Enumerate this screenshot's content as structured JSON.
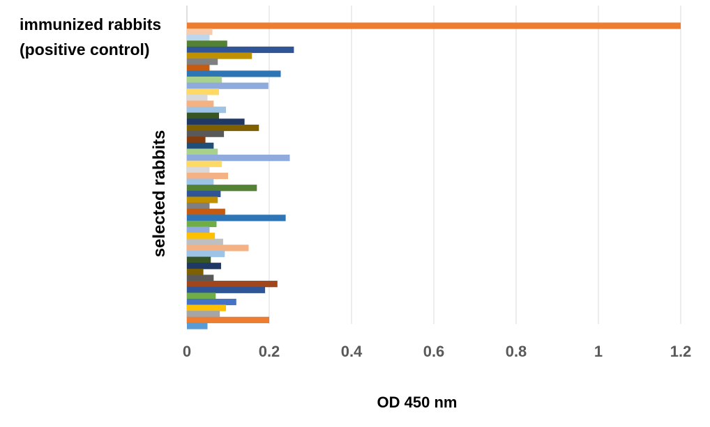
{
  "chart_data": {
    "type": "bar",
    "orientation": "horizontal",
    "xlabel": "OD 450 nm",
    "ylabel": "selected rabbits",
    "control_label_line1": "immunized rabbits",
    "control_label_line2": "(positive control)",
    "xlim": [
      0,
      1.2
    ],
    "xticks": [
      "0",
      "0.2",
      "0.4",
      "0.6",
      "0.8",
      "1",
      "1.2"
    ],
    "grid": "vertical",
    "legend": "none",
    "bars": [
      {
        "value": 1.2,
        "color": "#ED7D31"
      },
      {
        "value": 0.062,
        "color": "#F8CBAD"
      },
      {
        "value": 0.055,
        "color": "#BDD7EE"
      },
      {
        "value": 0.098,
        "color": "#548235"
      },
      {
        "value": 0.26,
        "color": "#2F5597"
      },
      {
        "value": 0.158,
        "color": "#BF9000"
      },
      {
        "value": 0.075,
        "color": "#7F7F7F"
      },
      {
        "value": 0.055,
        "color": "#C55A11"
      },
      {
        "value": 0.228,
        "color": "#2E75B6"
      },
      {
        "value": 0.085,
        "color": "#A9D18E"
      },
      {
        "value": 0.198,
        "color": "#8FAADC"
      },
      {
        "value": 0.078,
        "color": "#FFD966"
      },
      {
        "value": 0.05,
        "color": "#D9D9D9"
      },
      {
        "value": 0.065,
        "color": "#F4B183"
      },
      {
        "value": 0.095,
        "color": "#9DC3E6"
      },
      {
        "value": 0.078,
        "color": "#375623"
      },
      {
        "value": 0.14,
        "color": "#203864"
      },
      {
        "value": 0.175,
        "color": "#7F6000"
      },
      {
        "value": 0.09,
        "color": "#595959"
      },
      {
        "value": 0.045,
        "color": "#843C0C"
      },
      {
        "value": 0.065,
        "color": "#1F4E79"
      },
      {
        "value": 0.075,
        "color": "#A9D18E"
      },
      {
        "value": 0.25,
        "color": "#8FAADC"
      },
      {
        "value": 0.085,
        "color": "#FFD966"
      },
      {
        "value": 0.055,
        "color": "#D9D9D9"
      },
      {
        "value": 0.1,
        "color": "#F4B183"
      },
      {
        "value": 0.065,
        "color": "#9DC3E6"
      },
      {
        "value": 0.17,
        "color": "#548235"
      },
      {
        "value": 0.082,
        "color": "#2F5597"
      },
      {
        "value": 0.075,
        "color": "#BF9000"
      },
      {
        "value": 0.055,
        "color": "#7F7F7F"
      },
      {
        "value": 0.093,
        "color": "#C55A11"
      },
      {
        "value": 0.24,
        "color": "#2E75B6"
      },
      {
        "value": 0.072,
        "color": "#70AD47"
      },
      {
        "value": 0.055,
        "color": "#8FAADC"
      },
      {
        "value": 0.068,
        "color": "#FFC000"
      },
      {
        "value": 0.088,
        "color": "#BFBFBF"
      },
      {
        "value": 0.15,
        "color": "#F4B183"
      },
      {
        "value": 0.092,
        "color": "#9DC3E6"
      },
      {
        "value": 0.058,
        "color": "#375623"
      },
      {
        "value": 0.083,
        "color": "#203864"
      },
      {
        "value": 0.04,
        "color": "#7F6000"
      },
      {
        "value": 0.065,
        "color": "#595959"
      },
      {
        "value": 0.22,
        "color": "#A0461C"
      },
      {
        "value": 0.19,
        "color": "#2F5597"
      },
      {
        "value": 0.07,
        "color": "#70AD47"
      },
      {
        "value": 0.12,
        "color": "#4472C4"
      },
      {
        "value": 0.095,
        "color": "#FFC000"
      },
      {
        "value": 0.08,
        "color": "#A5A5A5"
      },
      {
        "value": 0.2,
        "color": "#ED7D31"
      },
      {
        "value": 0.05,
        "color": "#5B9BD5"
      }
    ]
  }
}
